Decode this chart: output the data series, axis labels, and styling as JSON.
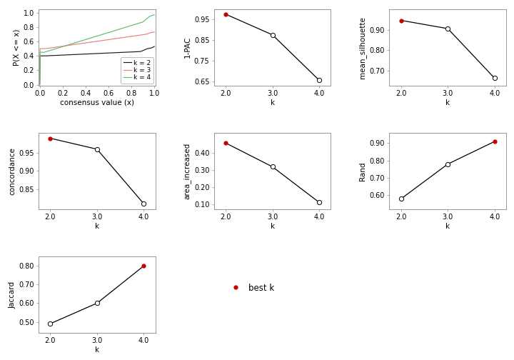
{
  "k_values": [
    2,
    3,
    4
  ],
  "pac": {
    "values": [
      0.975,
      0.875,
      0.655
    ],
    "best_k_idx": 0,
    "ylim": [
      0.63,
      1.0
    ],
    "yticks": [
      0.65,
      0.75,
      0.85,
      0.95
    ]
  },
  "silhouette": {
    "values": [
      0.945,
      0.905,
      0.665
    ],
    "best_k_idx": 0,
    "ylim": [
      0.63,
      1.0
    ],
    "yticks": [
      0.7,
      0.8,
      0.9
    ]
  },
  "concordance": {
    "values": [
      0.99,
      0.96,
      0.81
    ],
    "best_k_idx": 0,
    "ylim": [
      0.795,
      1.005
    ],
    "yticks": [
      0.85,
      0.9,
      0.95
    ]
  },
  "area_increased": {
    "values": [
      0.46,
      0.32,
      0.11
    ],
    "best_k_idx": 0,
    "ylim": [
      0.07,
      0.52
    ],
    "yticks": [
      0.1,
      0.2,
      0.3,
      0.4
    ]
  },
  "rand": {
    "values": [
      0.58,
      0.78,
      0.91
    ],
    "best_k_idx": 2,
    "ylim": [
      0.52,
      0.96
    ],
    "yticks": [
      0.6,
      0.7,
      0.8,
      0.9
    ]
  },
  "jaccard": {
    "values": [
      0.49,
      0.6,
      0.8
    ],
    "best_k_idx": 2,
    "ylim": [
      0.44,
      0.85
    ],
    "yticks": [
      0.5,
      0.6,
      0.7,
      0.8
    ]
  },
  "best_k_color": "#CC0000",
  "open_circle_color": "#000000",
  "line_color": "#000000",
  "background": "#FFFFFF",
  "legend_labels": [
    "k = 2",
    "k = 3",
    "k = 4"
  ],
  "ecdf_colors": [
    "#1a1a1a",
    "#e8837f",
    "#5dbe6e"
  ],
  "spine_color": "#888888",
  "tick_color": "#444444",
  "label_fontsize": 7.5,
  "tick_fontsize": 7.0,
  "legend_fontsize": 6.5
}
